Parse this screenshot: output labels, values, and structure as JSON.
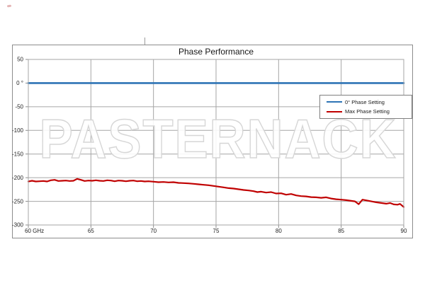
{
  "chart_data": {
    "type": "line",
    "title": "Phase Performance",
    "watermark": "PASTERNACK",
    "x_unit": "GHz",
    "xlim": [
      60,
      90
    ],
    "ylim": [
      -300,
      50
    ],
    "grid": true,
    "legend_position": "inside-right",
    "xticks": [
      60,
      65,
      70,
      75,
      80,
      85,
      90
    ],
    "xtick_labels": [
      "60 GHz",
      "65",
      "70",
      "75",
      "80",
      "85",
      "90"
    ],
    "yticks": [
      50,
      0,
      -50,
      -100,
      -150,
      -200,
      -250,
      -300
    ],
    "ytick_labels": [
      "50",
      "0 °",
      "-50",
      "-100",
      "-150",
      "-200",
      "-250",
      "-300"
    ],
    "colors": {
      "grid": "#a6a6a6",
      "frame": "#8c8c8c",
      "text": "#1f1f1f",
      "watermark_outline": "#d6d6d6",
      "series_blue": "#2e74b5",
      "series_red": "#c00000"
    },
    "series": [
      {
        "name": "0° Phase Setting",
        "color": "#2e74b5",
        "points": [
          [
            60,
            0
          ],
          [
            90,
            0
          ]
        ]
      },
      {
        "name": "Max Phase Setting",
        "color": "#c00000",
        "points": [
          [
            60,
            -208
          ],
          [
            60.3,
            -206.5
          ],
          [
            60.6,
            -208
          ],
          [
            60.9,
            -207.5
          ],
          [
            61.2,
            -207
          ],
          [
            61.5,
            -208
          ],
          [
            61.8,
            -205.5
          ],
          [
            62.1,
            -204.5
          ],
          [
            62.4,
            -207
          ],
          [
            62.7,
            -206.5
          ],
          [
            63,
            -206
          ],
          [
            63.3,
            -207
          ],
          [
            63.6,
            -206.5
          ],
          [
            63.9,
            -202.5
          ],
          [
            64.2,
            -204.5
          ],
          [
            64.5,
            -207
          ],
          [
            64.8,
            -206
          ],
          [
            65.1,
            -206.5
          ],
          [
            65.4,
            -205.5
          ],
          [
            65.7,
            -206.5
          ],
          [
            66,
            -207
          ],
          [
            66.3,
            -205.5
          ],
          [
            66.6,
            -206
          ],
          [
            66.9,
            -207.5
          ],
          [
            67.2,
            -206
          ],
          [
            67.5,
            -206.5
          ],
          [
            67.8,
            -207.5
          ],
          [
            68.1,
            -206.5
          ],
          [
            68.4,
            -206
          ],
          [
            68.7,
            -207.5
          ],
          [
            69,
            -207
          ],
          [
            69.3,
            -208
          ],
          [
            69.6,
            -207.5
          ],
          [
            70,
            -208.5
          ],
          [
            70.4,
            -209.5
          ],
          [
            70.8,
            -209
          ],
          [
            71.2,
            -210
          ],
          [
            71.6,
            -209.5
          ],
          [
            72,
            -211
          ],
          [
            72.4,
            -211.5
          ],
          [
            72.8,
            -212
          ],
          [
            73.2,
            -213
          ],
          [
            73.6,
            -214
          ],
          [
            74,
            -215
          ],
          [
            74.4,
            -216
          ],
          [
            74.8,
            -217.5
          ],
          [
            75.2,
            -219
          ],
          [
            75.6,
            -220.5
          ],
          [
            76,
            -222
          ],
          [
            76.4,
            -223
          ],
          [
            76.8,
            -224.5
          ],
          [
            77.2,
            -226
          ],
          [
            77.6,
            -227
          ],
          [
            78,
            -228.5
          ],
          [
            78.3,
            -230.5
          ],
          [
            78.6,
            -229.5
          ],
          [
            79,
            -231.5
          ],
          [
            79.4,
            -230.5
          ],
          [
            79.8,
            -233.5
          ],
          [
            80.2,
            -233
          ],
          [
            80.6,
            -236
          ],
          [
            81,
            -234.5
          ],
          [
            81.4,
            -237.5
          ],
          [
            81.8,
            -239
          ],
          [
            82.2,
            -239.5
          ],
          [
            82.6,
            -241
          ],
          [
            83,
            -241.5
          ],
          [
            83.4,
            -242.5
          ],
          [
            83.8,
            -241.5
          ],
          [
            84.2,
            -244
          ],
          [
            84.6,
            -245.5
          ],
          [
            85,
            -246.5
          ],
          [
            85.4,
            -247.5
          ],
          [
            85.8,
            -249
          ],
          [
            86.1,
            -250
          ],
          [
            86.4,
            -256
          ],
          [
            86.7,
            -246.5
          ],
          [
            87,
            -248
          ],
          [
            87.4,
            -250
          ],
          [
            87.8,
            -252
          ],
          [
            88.2,
            -253.5
          ],
          [
            88.6,
            -255
          ],
          [
            88.9,
            -253.5
          ],
          [
            89.2,
            -256.5
          ],
          [
            89.5,
            -257
          ],
          [
            89.7,
            -255.5
          ],
          [
            90,
            -262
          ]
        ]
      }
    ]
  }
}
